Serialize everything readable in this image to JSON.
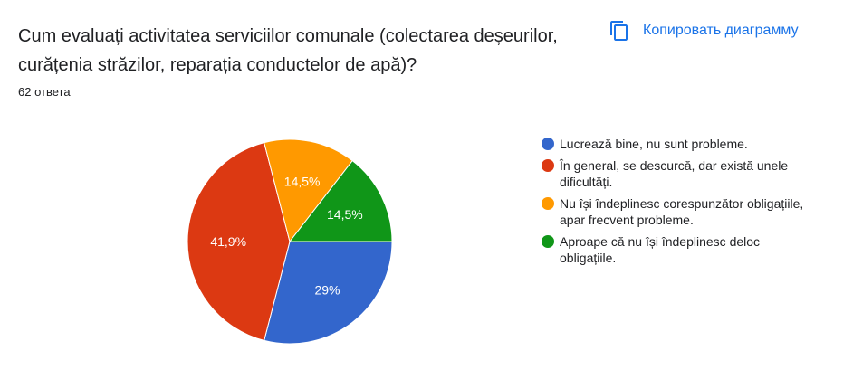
{
  "question": {
    "title": "Cum evaluați activitatea serviciilor comunale (colectarea deșeurilor, curățenia străzilor, reparația conductelor de apă)?",
    "responses": "62 ответа"
  },
  "toolbar": {
    "copy_label": "Копировать диаграмму",
    "copy_icon": "copy-icon"
  },
  "colors": {
    "accent": "#1a73e8"
  },
  "chart_data": {
    "type": "pie",
    "categories": [
      "Lucrează bine, nu sunt probleme.",
      "În general, se descurcă, dar există unele dificultăți.",
      "Nu își îndeplinesc corespunzător obligațiile, apar frecvent probleme.",
      "Aproape că nu își îndeplinesc deloc obligațiile."
    ],
    "values": [
      29,
      41.9,
      14.5,
      14.5
    ],
    "labels": [
      "29%",
      "41,9%",
      "14,5%",
      "14,5%"
    ],
    "colors": [
      "#3366cc",
      "#dc3912",
      "#ff9900",
      "#109618"
    ],
    "legend": "right"
  }
}
